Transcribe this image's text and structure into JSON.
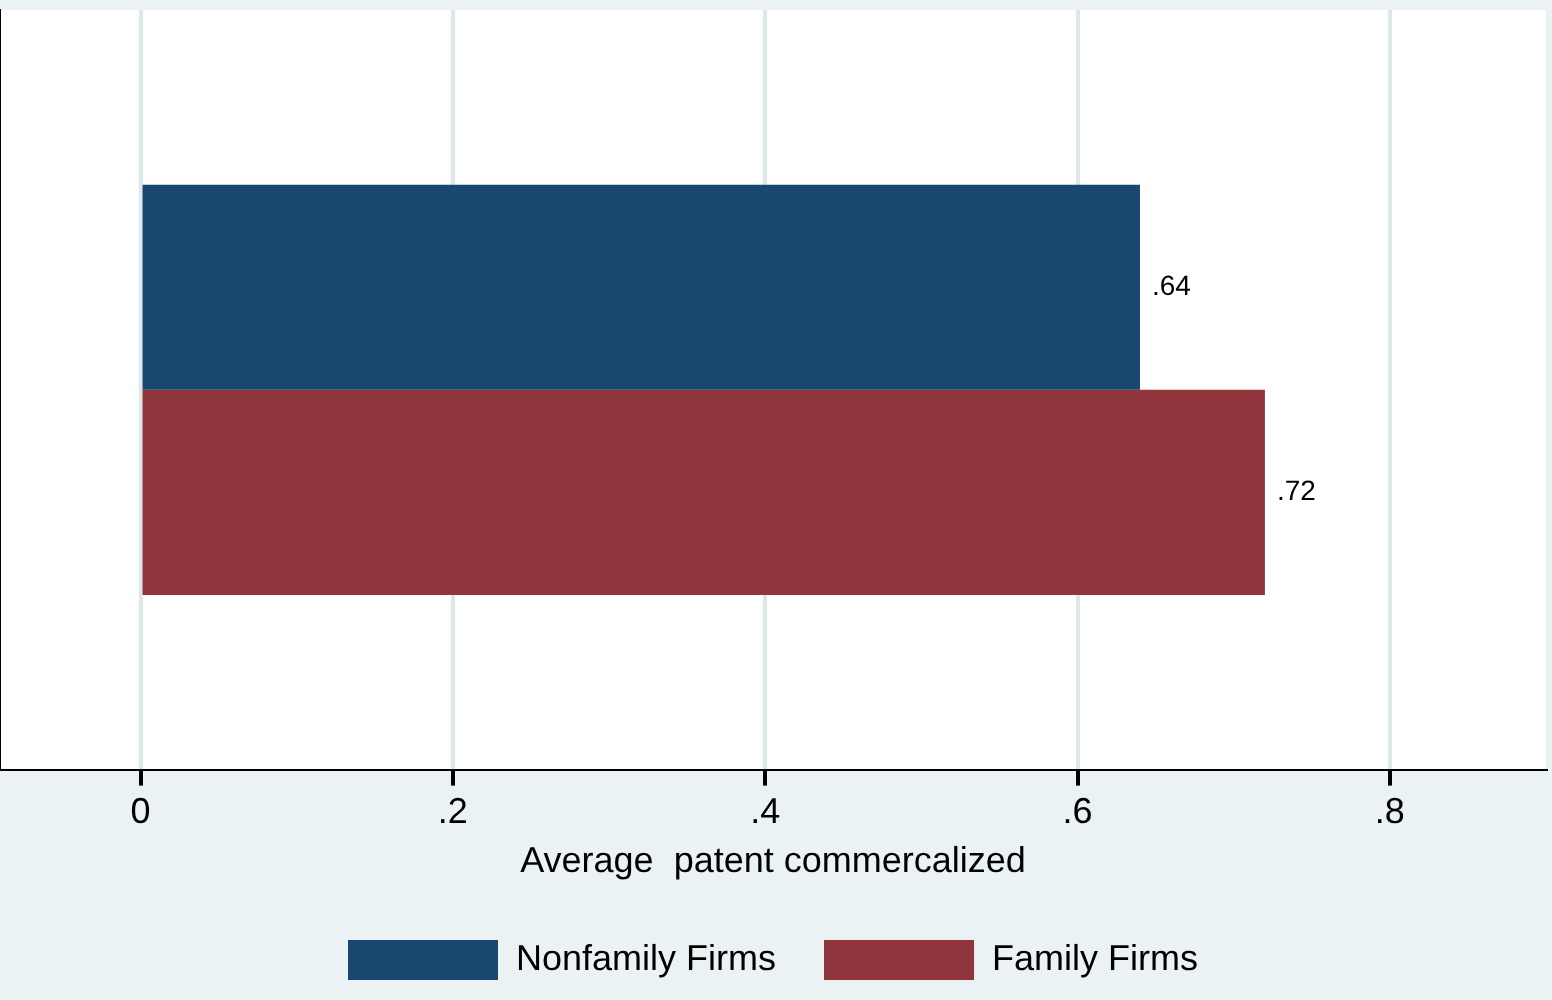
{
  "chart_data": {
    "type": "bar",
    "orientation": "horizontal",
    "categories": [
      null
    ],
    "series": [
      {
        "name": "Nonfamily Firms",
        "color": "#1a476f",
        "values": [
          0.64
        ],
        "value_labels": [
          ".64"
        ]
      },
      {
        "name": "Family Firms",
        "color": "#90353b",
        "values": [
          0.72
        ],
        "value_labels": [
          ".72"
        ]
      }
    ],
    "xlabel": "Average  patent commercalized",
    "xlim": [
      -0.09,
      0.9
    ],
    "xticks": [
      0,
      {
        "value": 0.2,
        "label": ".2"
      },
      {
        "value": 0.4,
        "label": ".4"
      },
      {
        "value": 0.6,
        "label": ".6"
      },
      {
        "value": 0.8,
        "label": ".8"
      }
    ],
    "grid": "x",
    "legend": "bottom"
  }
}
